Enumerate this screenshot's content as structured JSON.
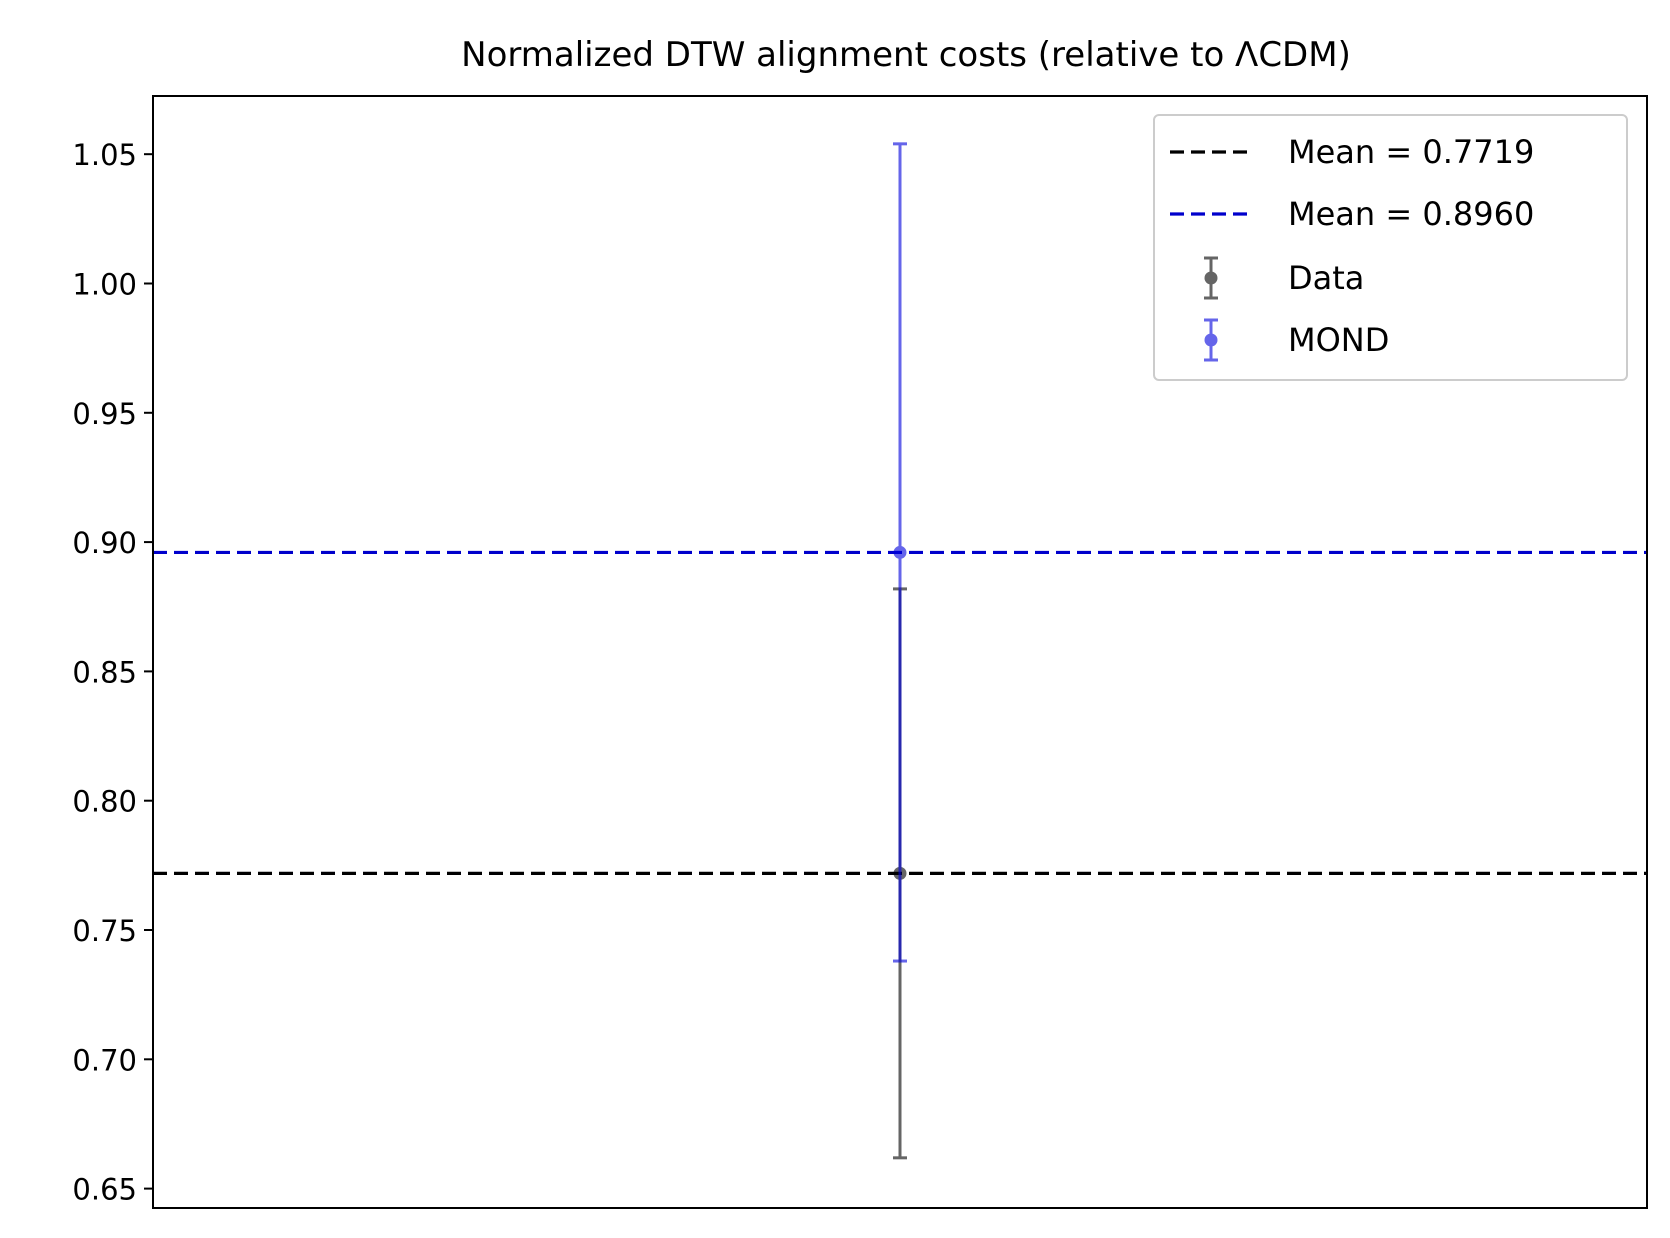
{
  "chart_data": {
    "type": "scatter",
    "title": "Normalized DTW alignment costs (relative to ΛCDM)",
    "xlabel": "",
    "ylabel": "",
    "ylim": [
      0.6425,
      1.0725
    ],
    "yticks": [
      "0.65",
      "0.70",
      "0.75",
      "0.80",
      "0.85",
      "0.90",
      "0.95",
      "1.00",
      "1.05"
    ],
    "ytick_values": [
      0.65,
      0.7,
      0.75,
      0.8,
      0.85,
      0.9,
      0.95,
      1.0,
      1.05
    ],
    "show_xticks": false,
    "grid": false,
    "legend_position": "top-right",
    "series": [
      {
        "name": "Data",
        "color": "#000000",
        "opacity": 0.6,
        "x": [
          0
        ],
        "y": [
          0.7719
        ],
        "err": [
          0.11
        ]
      },
      {
        "name": "MOND",
        "color": "#0000dd",
        "opacity": 0.6,
        "x": [
          0
        ],
        "y": [
          0.896
        ],
        "err": [
          0.158
        ]
      }
    ],
    "hlines": [
      {
        "label": "Mean = 0.7719",
        "y": 0.7719,
        "color": "#000000",
        "style": "dashed"
      },
      {
        "label": "Mean = 0.8960",
        "y": 0.896,
        "color": "#0000cc",
        "style": "dashed"
      }
    ]
  }
}
